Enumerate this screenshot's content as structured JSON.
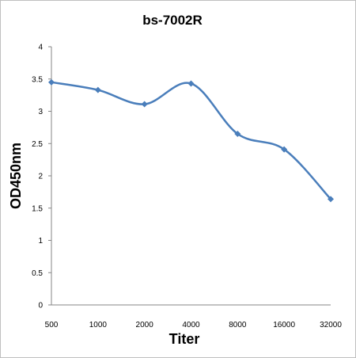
{
  "chart_data": {
    "type": "line",
    "title": "bs-7002R",
    "xlabel": "Titer",
    "ylabel": "OD450nm",
    "categories": [
      "500",
      "1000",
      "2000",
      "4000",
      "8000",
      "16000",
      "32000"
    ],
    "series": [
      {
        "values": [
          3.45,
          3.33,
          3.11,
          3.43,
          2.65,
          2.41,
          1.64
        ]
      }
    ],
    "ylim": [
      0,
      4
    ],
    "yticks": [
      "0",
      "0.5",
      "1",
      "1.5",
      "2",
      "2.5",
      "3",
      "3.5",
      "4"
    ],
    "grid": false,
    "legend": "none",
    "colors": {
      "line": "#4a7ebb",
      "marker": "#4a7ebb",
      "axis": "#868686"
    }
  }
}
